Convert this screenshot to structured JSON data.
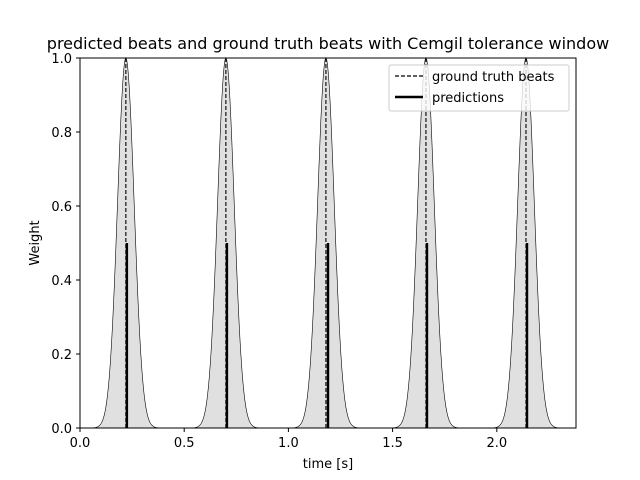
{
  "chart_data": {
    "type": "line",
    "title": "predicted beats and ground truth beats with Cemgil tolerance window",
    "xlabel": "time [s]",
    "ylabel": "Weight",
    "xlim": [
      0.0,
      2.38
    ],
    "ylim": [
      0.0,
      1.0
    ],
    "x_ticks": [
      0.0,
      0.5,
      1.0,
      1.5,
      2.0
    ],
    "x_tick_labels": [
      "0.0",
      "0.5",
      "1.0",
      "1.5",
      "2.0"
    ],
    "y_ticks": [
      0.0,
      0.2,
      0.4,
      0.6,
      0.8,
      1.0
    ],
    "y_tick_labels": [
      "0.0",
      "0.2",
      "0.4",
      "0.6",
      "0.8",
      "1.0"
    ],
    "grid": false,
    "legend_position": "top-right",
    "tolerance_sigma": 0.04,
    "series": [
      {
        "name": "ground truth beats",
        "style": "dashed",
        "x": [
          0.22,
          0.7,
          1.18,
          1.66,
          2.14
        ],
        "height": 1.0
      },
      {
        "name": "predictions",
        "style": "solid",
        "x": [
          0.225,
          0.705,
          1.19,
          1.665,
          2.145
        ],
        "height": 0.5
      }
    ],
    "colors": {
      "window_fill": "#e0e0e0",
      "window_line": "#000000",
      "ground_truth": "#000000",
      "predictions": "#000000"
    }
  }
}
